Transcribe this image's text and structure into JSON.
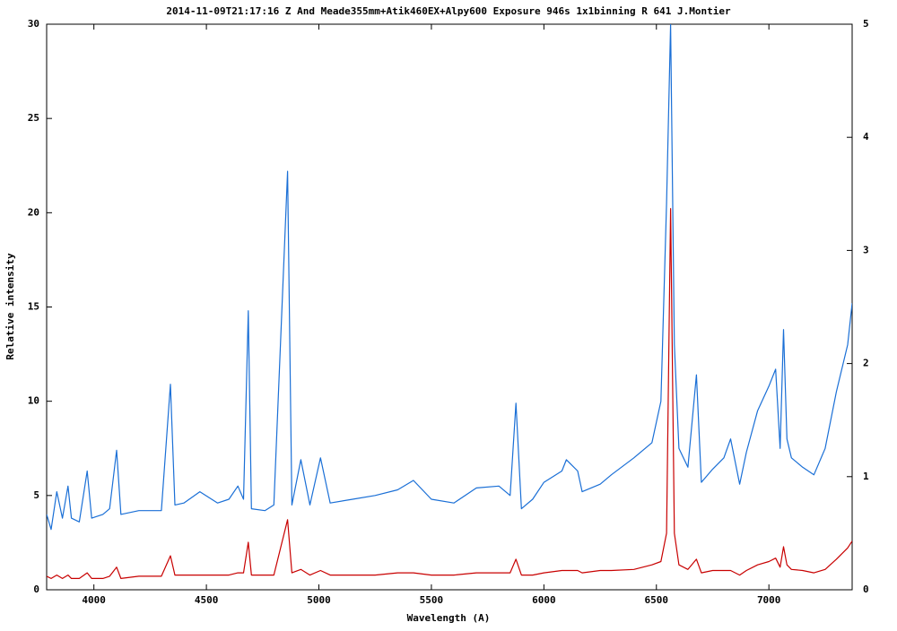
{
  "chart_data": {
    "type": "line",
    "title": "2014-11-09T21:17:16 Z And Meade355mm+Atik460EX+Alpy600 Exposure 946s 1x1binning R 641 J.Montier",
    "x_label": "Wavelength (A)",
    "y_label": "Relative intensity",
    "x": [
      3790,
      3810,
      3835,
      3860,
      3885,
      3900,
      3935,
      3970,
      3990,
      4040,
      4070,
      4101,
      4120,
      4200,
      4300,
      4340,
      4360,
      4400,
      4471,
      4550,
      4600,
      4640,
      4665,
      4686,
      4700,
      4760,
      4800,
      4861,
      4880,
      4920,
      4960,
      5007,
      5050,
      5150,
      5250,
      5350,
      5420,
      5500,
      5600,
      5700,
      5800,
      5850,
      5876,
      5900,
      5950,
      6000,
      6080,
      6100,
      6150,
      6170,
      6250,
      6300,
      6400,
      6480,
      6520,
      6545,
      6563,
      6580,
      6600,
      6640,
      6678,
      6700,
      6750,
      6800,
      6830,
      6870,
      6900,
      6950,
      7000,
      7030,
      7050,
      7065,
      7080,
      7100,
      7150,
      7200,
      7250,
      7300,
      7350,
      7370
    ],
    "series": [
      {
        "color": "#1a6fd6",
        "values": [
          4.0,
          3.2,
          5.2,
          3.8,
          5.5,
          3.8,
          3.6,
          6.3,
          3.8,
          4.0,
          4.3,
          7.4,
          4.0,
          4.2,
          4.2,
          10.9,
          4.5,
          4.6,
          5.2,
          4.6,
          4.8,
          5.5,
          4.8,
          14.8,
          4.3,
          4.2,
          4.5,
          22.2,
          4.5,
          6.9,
          4.5,
          7.0,
          4.6,
          4.8,
          5.0,
          5.3,
          5.8,
          4.8,
          4.6,
          5.4,
          5.5,
          5.0,
          9.9,
          4.3,
          4.8,
          5.7,
          6.3,
          6.9,
          6.3,
          5.2,
          5.6,
          6.1,
          7.0,
          7.8,
          10.0,
          20.5,
          30,
          13,
          7.5,
          6.5,
          11.4,
          5.7,
          6.4,
          7.0,
          8.0,
          5.6,
          7.3,
          9.5,
          10.8,
          11.7,
          7.5,
          13.8,
          8.0,
          7.0,
          6.5,
          6.1,
          7.5,
          10.5,
          13.0,
          15.2
        ]
      },
      {
        "color": "#c80000",
        "axis": "y2",
        "values": [
          0.12,
          0.1,
          0.13,
          0.1,
          0.13,
          0.1,
          0.1,
          0.15,
          0.1,
          0.1,
          0.12,
          0.2,
          0.1,
          0.12,
          0.12,
          0.3,
          0.13,
          0.13,
          0.13,
          0.13,
          0.13,
          0.15,
          0.15,
          0.42,
          0.13,
          0.13,
          0.13,
          0.62,
          0.15,
          0.18,
          0.13,
          0.17,
          0.13,
          0.13,
          0.13,
          0.15,
          0.15,
          0.13,
          0.13,
          0.15,
          0.15,
          0.15,
          0.27,
          0.13,
          0.13,
          0.15,
          0.17,
          0.17,
          0.17,
          0.15,
          0.17,
          0.17,
          0.18,
          0.22,
          0.25,
          0.5,
          3.37,
          0.5,
          0.22,
          0.18,
          0.27,
          0.15,
          0.17,
          0.17,
          0.17,
          0.13,
          0.17,
          0.22,
          0.25,
          0.28,
          0.2,
          0.38,
          0.22,
          0.18,
          0.17,
          0.15,
          0.18,
          0.27,
          0.37,
          0.43
        ]
      }
    ],
    "xlim": [
      3790,
      7370
    ],
    "xticks": [
      4000,
      4500,
      5000,
      5500,
      6000,
      6500,
      7000
    ],
    "ylim": [
      0,
      30
    ],
    "yticks": [
      0,
      5,
      10,
      15,
      20,
      25,
      30
    ],
    "y2lim": [
      0,
      5
    ],
    "y2ticks": [
      0,
      1,
      2,
      3,
      4,
      5
    ]
  }
}
